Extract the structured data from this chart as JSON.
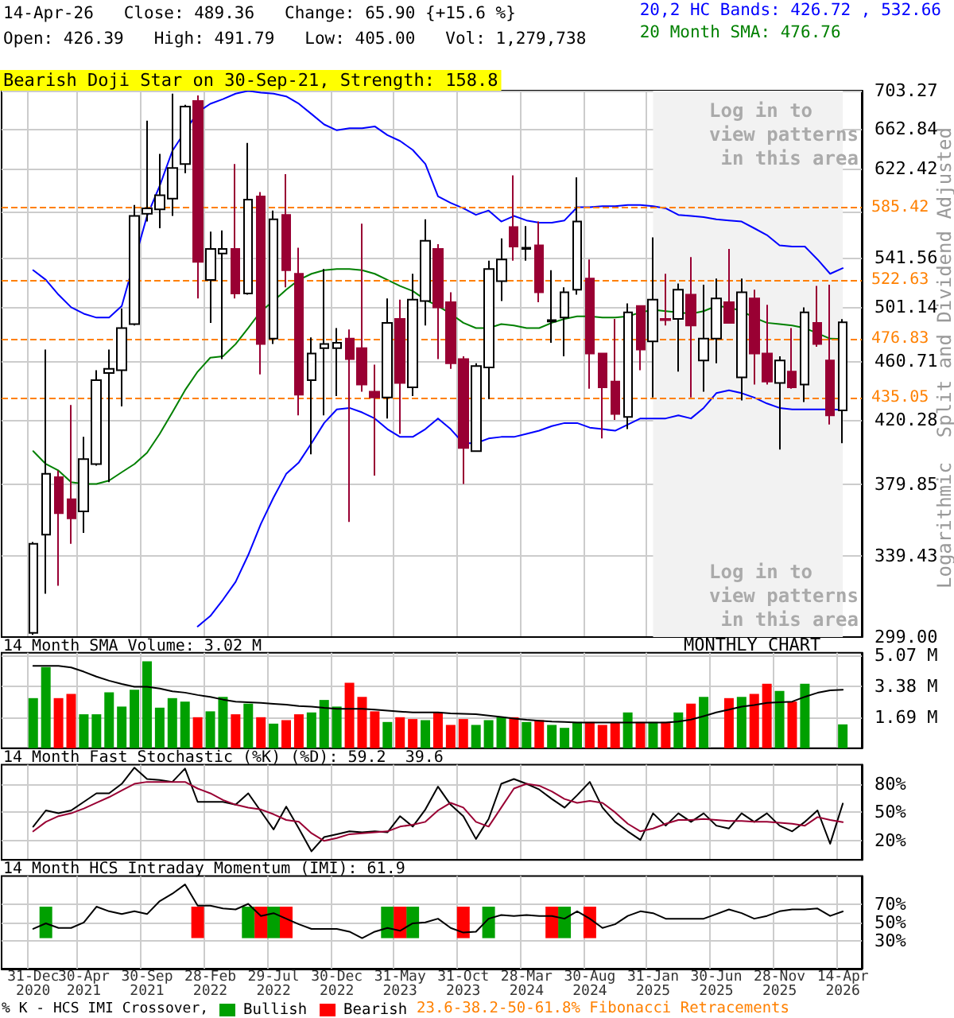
{
  "chart_data": [
    {
      "type": "candlestick",
      "title": "14-Apr-26   Close: 489.36   Change: 65.90 {+15.6 %}",
      "subtitle": "Open: 426.39   High: 491.79   Low: 405.00   Vol: 1,279,738",
      "ylabel": "Split and Dividend Adjusted",
      "annotations": [
        "Bearish Doji Star on 30-Sep-21, Strength: 158.8",
        "Log in to view patterns in this area",
        "Log in to view patterns in this area",
        "Logarithmic"
      ],
      "categories": [
        "31-Dec 2020",
        null,
        null,
        null,
        "30-Apr 2021",
        null,
        null,
        null,
        null,
        "30-Sep 2021",
        null,
        null,
        null,
        null,
        "28-Feb 2022",
        null,
        null,
        null,
        null,
        "29-Jul 2022",
        null,
        null,
        null,
        null,
        "30-Dec 2022",
        null,
        null,
        null,
        null,
        "31-May 2023",
        null,
        null,
        null,
        null,
        "31-Oct 2023",
        null,
        null,
        null,
        null,
        "28-Mar 2024",
        null,
        null,
        null,
        null,
        "30-Aug 2024",
        null,
        null,
        null,
        null,
        "31-Jan 2025",
        null,
        null,
        null,
        null,
        "30-Jun 2025",
        null,
        null,
        null,
        null,
        "28-Nov 2025",
        null,
        null,
        null,
        null,
        "14-Apr 2026"
      ],
      "ohlc": [
        [
          301,
          347,
          300,
          346
        ],
        [
          351,
          469,
          320,
          386
        ],
        [
          384,
          388,
          324,
          363
        ],
        [
          371,
          430,
          346,
          360
        ],
        [
          364,
          409,
          352,
          395
        ],
        [
          392,
          454,
          391,
          447
        ],
        [
          452,
          469,
          381,
          455
        ],
        [
          454,
          500,
          429,
          485
        ],
        [
          488,
          588,
          487,
          578
        ],
        [
          580,
          671,
          573,
          585
        ],
        [
          584,
          637,
          567,
          597
        ],
        [
          594,
          700,
          578,
          623
        ],
        [
          627,
          688,
          618,
          686
        ],
        [
          692,
          698,
          508,
          538
        ],
        [
          523,
          564,
          489,
          549
        ],
        [
          545,
          565,
          462,
          549
        ],
        [
          549,
          627,
          508,
          512
        ],
        [
          512,
          648,
          511,
          593
        ],
        [
          596,
          600,
          451,
          473
        ],
        [
          477,
          583,
          473,
          575
        ],
        [
          579,
          617,
          517,
          531
        ],
        [
          528,
          550,
          423,
          437
        ],
        [
          447,
          478,
          398,
          466
        ],
        [
          470,
          532,
          423,
          473
        ],
        [
          470,
          485,
          436,
          474
        ],
        [
          477,
          484,
          358,
          462
        ],
        [
          470,
          571,
          439,
          444
        ],
        [
          439,
          458,
          385,
          435
        ],
        [
          435,
          508,
          421,
          489
        ],
        [
          492,
          507,
          411,
          445
        ],
        [
          442,
          528,
          436,
          507
        ],
        [
          506,
          575,
          487,
          556
        ],
        [
          549,
          553,
          462,
          501
        ],
        [
          505,
          513,
          455,
          459
        ],
        [
          462,
          464,
          380,
          402
        ],
        [
          400,
          459,
          400,
          457
        ],
        [
          456,
          539,
          434,
          532
        ],
        [
          522,
          558,
          506,
          540
        ],
        [
          568,
          616,
          539,
          551
        ],
        [
          549,
          569,
          539,
          550
        ],
        [
          552,
          573,
          505,
          513
        ],
        [
          490,
          531,
          474,
          491
        ],
        [
          493,
          517,
          464,
          513
        ],
        [
          515,
          614,
          511,
          573
        ],
        [
          524,
          540,
          441,
          466
        ],
        [
          466,
          466,
          408,
          442
        ],
        [
          446,
          492,
          420,
          424
        ],
        [
          422,
          504,
          414,
          497
        ],
        [
          502,
          502,
          454,
          469
        ],
        [
          475,
          559,
          435,
          507
        ],
        [
          492,
          528,
          487,
          491
        ],
        [
          492,
          520,
          453,
          515
        ],
        [
          511,
          542,
          435,
          487
        ],
        [
          461,
          519,
          439,
          477
        ],
        [
          477,
          524,
          459,
          508
        ],
        [
          505,
          549,
          489,
          489
        ],
        [
          449,
          524,
          433,
          513
        ],
        [
          508,
          515,
          444,
          466
        ],
        [
          466,
          503,
          444,
          446
        ],
        [
          445,
          464,
          401,
          461
        ],
        [
          453,
          485,
          441,
          442
        ],
        [
          444,
          501,
          432,
          497
        ],
        [
          489,
          518,
          471,
          473
        ],
        [
          461,
          519,
          417,
          423
        ],
        [
          426.39,
          491.79,
          405,
          489.36
        ]
      ],
      "series": [
        {
          "type": "line",
          "name": "20,2 HC Bands: 426.72 , 532.66",
          "color": "#0000ff",
          "values": [
            531,
            523,
            511,
            501,
            496,
            493,
            493,
            502,
            null,
            578,
            606,
            640,
            null,
            680,
            689,
            694,
            700,
            703,
            701,
            700,
            697,
            689,
            678,
            667,
            661,
            663,
            663,
            665,
            656,
            650,
            641,
            627,
            596,
            590,
            585,
            579,
            583,
            573,
            578,
            574,
            572,
            572,
            574,
            586,
            586,
            587,
            587,
            588,
            588,
            587,
            585,
            579,
            578,
            577,
            575,
            574,
            573,
            567,
            561,
            552,
            551,
            551,
            540,
            528,
            532.66
          ]
        },
        {
          "type": "line",
          "color": "#0000ff",
          "values": [
            null,
            null,
            null,
            null,
            null,
            null,
            null,
            null,
            null,
            null,
            null,
            null,
            null,
            304,
            309,
            317,
            326,
            340,
            357,
            372,
            386,
            393,
            405,
            418,
            427,
            428,
            425,
            421,
            414,
            409,
            409,
            414,
            421,
            414,
            405,
            405,
            408,
            409,
            409,
            411,
            413,
            416,
            418,
            418,
            415,
            414,
            413,
            417,
            421,
            421,
            421,
            423,
            421,
            428,
            438,
            440,
            438,
            435,
            431,
            428,
            427,
            427,
            427,
            427,
            426.72
          ]
        },
        {
          "type": "line",
          "name": "20 Month SMA: 476.76",
          "color": "#008000",
          "values": [
            400,
            392,
            388,
            381,
            380,
            380,
            382,
            387,
            392,
            399,
            411,
            425,
            440,
            453,
            463,
            464,
            473,
            485,
            498,
            506,
            515,
            523,
            528,
            531,
            532,
            532,
            531,
            528,
            523,
            518,
            514,
            507,
            502,
            496,
            489,
            485,
            485,
            488,
            487,
            485,
            485,
            489,
            492,
            494,
            494,
            493,
            493,
            494,
            497,
            499,
            498,
            497,
            496,
            498,
            502,
            501,
            498,
            493,
            489,
            488,
            487,
            485,
            481,
            477,
            476.76
          ]
        }
      ],
      "ylim": [
        299,
        703.27
      ],
      "yticks": [
        {
          "value": 299,
          "label": "299.00"
        },
        339.43,
        379.85,
        420.28,
        460.71,
        501.14,
        541.56,
        {
          "value": 581.99,
          "label": null
        },
        622.42,
        662.84,
        703.27
      ],
      "log": true,
      "grid": true,
      "legend": "top right",
      "marker": "none",
      "tick_labels": "y",
      "ref_lines": [
        {
          "axis": "y",
          "value": 585.42,
          "label": "585.42",
          "color": "#ff8000",
          "line_style": "dashed"
        },
        {
          "axis": "y",
          "value": 522.63,
          "label": "522.63",
          "color": "#ff8000",
          "line_style": "dashed"
        },
        {
          "axis": "y",
          "value": 476.83,
          "label": "476.83",
          "color": "#ff8000",
          "line_style": "dashed"
        },
        {
          "axis": "y",
          "value": 435.05,
          "label": "435.05",
          "color": "#ff8000",
          "line_style": "dashed"
        }
      ],
      "bands": [
        {
          "axis": "x",
          "from": "31-Jan 2025",
          "to": "14-Apr 2026",
          "color": "#f2f2f2"
        }
      ]
    },
    {
      "type": "bar",
      "title": "14 Month SMA Volume: 3.02 M",
      "annotations": [
        "MONTHLY CHART"
      ],
      "categories": [
        "31-Dec 2020",
        null,
        null,
        null,
        "30-Apr 2021",
        null,
        null,
        null,
        null,
        "30-Sep 2021",
        null,
        null,
        null,
        null,
        "28-Feb 2022",
        null,
        null,
        null,
        null,
        "29-Jul 2022",
        null,
        null,
        null,
        null,
        "30-Dec 2022",
        null,
        null,
        null,
        null,
        "31-May 2023",
        null,
        null,
        null,
        null,
        "31-Oct 2023",
        null,
        null,
        null,
        null,
        "28-Mar 2024",
        null,
        null,
        null,
        null,
        "30-Aug 2024",
        null,
        null,
        null,
        null,
        "31-Jan 2025",
        null,
        null,
        null,
        null,
        "30-Jun 2025",
        null,
        null,
        null,
        null,
        "28-Nov 2025",
        null,
        null,
        null,
        null,
        "14-Apr 2026"
      ],
      "series": [
        {
          "values": [
            2.73,
            4.42,
            2.73,
            2.96,
            1.85,
            1.85,
            3.05,
            2.27,
            3.19,
            4.74,
            2.21,
            2.73,
            2.54,
            1.69,
            2.01,
            2.8,
            1.85,
            2.43,
            1.69,
            1.34,
            1.53,
            1.85,
            1.95,
            2.63,
            2.27,
            3.57,
            2.8,
            2.01,
            1.43,
            1.69,
            1.59,
            1.53,
            1.95,
            1.27,
            1.59,
            1.27,
            1.53,
            1.69,
            1.69,
            1.43,
            1.53,
            1.27,
            1.11,
            1.43,
            1.43,
            1.27,
            1.43,
            1.95,
            1.43,
            1.43,
            1.43,
            1.95,
            2.43,
            2.8,
            null,
            2.73,
            2.8,
            2.96,
            3.51,
            3.12,
            2.54,
            3.51,
            null,
            null,
            1.3
          ],
          "colors": [
            "#00a000",
            "#00a000",
            "#ff0000",
            "#ff0000",
            "#00a000",
            "#00a000",
            "#00a000",
            "#00a000",
            "#00a000",
            "#00a000",
            "#00a000",
            "#00a000",
            "#00a000",
            "#ff0000",
            "#00a000",
            "#00a000",
            "#ff0000",
            "#00a000",
            "#ff0000",
            "#00a000",
            "#ff0000",
            "#ff0000",
            "#00a000",
            "#00a000",
            "#00a000",
            "#ff0000",
            "#ff0000",
            "#ff0000",
            "#00a000",
            "#ff0000",
            "#ff0000",
            "#00a000",
            "#ff0000",
            "#ff0000",
            "#ff0000",
            "#00a000",
            "#00a000",
            "#00a000",
            "#ff0000",
            "#00a000",
            "#ff0000",
            "#00a000",
            "#00a000",
            "#00a000",
            "#ff0000",
            "#ff0000",
            "#ff0000",
            "#00a000",
            "#ff0000",
            "#00a000",
            "#ff0000",
            "#00a000",
            "#ff0000",
            "#00a000",
            "#00a000",
            "#ff0000",
            "#00a000",
            "#ff0000",
            "#ff0000",
            "#00a000",
            "#ff0000",
            "#00a000",
            "#ff0000",
            "#ff0000",
            "#00a000"
          ]
        },
        {
          "type": "line",
          "color": "#000000",
          "values": [
            4.49,
            4.49,
            4.49,
            4.4,
            4.17,
            3.9,
            3.68,
            3.5,
            3.35,
            3.35,
            3.25,
            3.1,
            3.03,
            2.9,
            2.8,
            2.65,
            2.54,
            2.5,
            2.47,
            2.42,
            2.37,
            2.3,
            2.27,
            2.2,
            2.15,
            2.15,
            2.15,
            2.1,
            2.05,
            2.0,
            1.95,
            1.95,
            1.95,
            1.9,
            1.88,
            1.85,
            1.78,
            1.7,
            1.62,
            1.55,
            1.5,
            1.45,
            1.43,
            1.4,
            1.4,
            1.4,
            1.4,
            1.4,
            1.4,
            1.4,
            1.4,
            1.45,
            1.56,
            1.75,
            1.95,
            2.1,
            2.27,
            2.35,
            2.47,
            2.5,
            2.54,
            2.8,
            3.02,
            3.15,
            3.19
          ]
        }
      ],
      "ylim": [
        0,
        5.2
      ],
      "yticks": [
        {
          "value": 1.69,
          "label": "1.69 M"
        },
        {
          "value": 3.38,
          "label": "3.38 M"
        },
        {
          "value": 5.07,
          "label": "5.07 M"
        }
      ],
      "grid": true,
      "marker": "none",
      "tick_labels": "y"
    },
    {
      "type": "line",
      "title": "14 Month Fast Stochastic (%K) (%D): 59.2  39.6",
      "categories": [
        "31-Dec 2020",
        null,
        null,
        null,
        "30-Apr 2021",
        null,
        null,
        null,
        null,
        "30-Sep 2021",
        null,
        null,
        null,
        null,
        "28-Feb 2022",
        null,
        null,
        null,
        null,
        "29-Jul 2022",
        null,
        null,
        null,
        null,
        "30-Dec 2022",
        null,
        null,
        null,
        null,
        "31-May 2023",
        null,
        null,
        null,
        null,
        "31-Oct 2023",
        null,
        null,
        null,
        null,
        "28-Mar 2024",
        null,
        null,
        null,
        null,
        "30-Aug 2024",
        null,
        null,
        null,
        null,
        "31-Jan 2025",
        null,
        null,
        null,
        null,
        "30-Jun 2025",
        null,
        null,
        null,
        null,
        "28-Nov 2025",
        null,
        null,
        null,
        null,
        "14-Apr 2026"
      ],
      "series": [
        {
          "color": "#000000",
          "values": [
            35,
            52,
            49,
            52,
            61,
            70,
            70,
            80,
            97,
            85,
            84,
            82,
            96,
            61,
            61,
            61,
            58,
            70,
            51,
            32,
            56,
            33,
            9,
            24,
            27,
            30,
            29,
            30,
            29,
            46,
            35,
            53,
            77,
            58,
            46,
            22,
            43,
            80,
            85,
            80,
            74,
            64,
            55,
            68,
            82,
            55,
            40,
            30,
            21,
            49,
            36,
            49,
            40,
            49,
            36,
            33,
            49,
            40,
            49,
            36,
            30,
            40,
            52,
            17,
            59.2
          ]
        },
        {
          "color": "#990033",
          "values": [
            30,
            40,
            46,
            49,
            54,
            60,
            66,
            73,
            80,
            82,
            82,
            82,
            82,
            75,
            70,
            63,
            58,
            55,
            53,
            48,
            42,
            40,
            28,
            20,
            23,
            27,
            28,
            29,
            30,
            35,
            37,
            40,
            52,
            60,
            55,
            40,
            35,
            55,
            75,
            80,
            78,
            72,
            64,
            60,
            62,
            60,
            50,
            38,
            30,
            33,
            38,
            42,
            42,
            43,
            42,
            41,
            41,
            40,
            40,
            39,
            38,
            36,
            45,
            42,
            39.6
          ]
        }
      ],
      "ylim": [
        0,
        100
      ],
      "yticks": [
        {
          "value": 20,
          "label": "20%"
        },
        {
          "value": 50,
          "label": "50%"
        },
        {
          "value": 80,
          "label": "80%"
        }
      ],
      "grid": true,
      "marker": "none",
      "tick_labels": "y"
    },
    {
      "type": "line",
      "title": "14 Month HCS Intraday Momentum (IMI): 61.9",
      "legend_title": "% K - HCS IMI Crossover,",
      "annotations": [
        "23.6-38.2-50-61.8% Fibonacci Retracements"
      ],
      "categories": [
        "31-Dec 2020",
        null,
        null,
        null,
        "30-Apr 2021",
        null,
        null,
        null,
        null,
        "30-Sep 2021",
        null,
        null,
        null,
        null,
        "28-Feb 2022",
        null,
        null,
        null,
        null,
        "29-Jul 2022",
        null,
        null,
        null,
        null,
        "30-Dec 2022",
        null,
        null,
        null,
        null,
        "31-May 2023",
        null,
        null,
        null,
        null,
        "31-Oct 2023",
        null,
        null,
        null,
        null,
        "28-Mar 2024",
        null,
        null,
        null,
        null,
        "30-Aug 2024",
        null,
        null,
        null,
        null,
        "31-Jan 2025",
        null,
        null,
        null,
        null,
        "30-Jun 2025",
        null,
        null,
        null,
        null,
        "28-Nov 2025",
        null,
        null,
        null,
        null,
        "14-Apr 2026"
      ],
      "series": [
        {
          "type": "bar",
          "name": "Bullish",
          "color": "#00a000",
          "values": [
            null,
            34,
            null,
            null,
            null,
            null,
            null,
            null,
            null,
            null,
            null,
            null,
            null,
            null,
            null,
            null,
            null,
            34,
            null,
            34,
            null,
            null,
            null,
            null,
            null,
            null,
            null,
            null,
            34,
            null,
            34,
            null,
            null,
            null,
            null,
            null,
            34,
            null,
            null,
            null,
            null,
            null,
            34,
            null,
            null,
            null,
            null,
            null,
            null,
            null,
            null,
            null,
            null,
            null,
            null,
            null,
            null,
            null,
            null,
            null,
            null,
            null,
            null,
            null,
            null
          ],
          "base": [
            null,
            33,
            null,
            null,
            null,
            null,
            null,
            null,
            null,
            null,
            null,
            null,
            null,
            null,
            null,
            null,
            null,
            33,
            null,
            33,
            null,
            null,
            null,
            null,
            null,
            null,
            null,
            null,
            33,
            null,
            33,
            null,
            null,
            null,
            null,
            null,
            33,
            null,
            null,
            null,
            null,
            null,
            33,
            null,
            null,
            null,
            null,
            null,
            null,
            null,
            null,
            null,
            null,
            null,
            null,
            null,
            null,
            null,
            null,
            null,
            null,
            null,
            null,
            null,
            null
          ]
        },
        {
          "type": "bar",
          "name": "Bearish",
          "color": "#ff0000",
          "values": [
            null,
            null,
            null,
            null,
            null,
            null,
            null,
            null,
            null,
            null,
            null,
            null,
            null,
            34,
            null,
            null,
            null,
            null,
            34,
            null,
            34,
            null,
            null,
            null,
            null,
            null,
            null,
            null,
            null,
            34,
            null,
            null,
            null,
            null,
            34,
            null,
            null,
            null,
            null,
            null,
            null,
            34,
            null,
            null,
            34,
            null,
            null,
            null,
            null,
            null,
            null,
            null,
            null,
            null,
            null,
            null,
            null,
            null,
            null,
            null,
            null,
            null,
            null,
            null,
            null
          ],
          "base": [
            null,
            null,
            null,
            null,
            null,
            null,
            null,
            null,
            null,
            null,
            null,
            null,
            null,
            33,
            null,
            null,
            null,
            null,
            33,
            null,
            33,
            null,
            null,
            null,
            null,
            null,
            null,
            null,
            null,
            33,
            null,
            null,
            null,
            null,
            33,
            null,
            null,
            null,
            null,
            null,
            null,
            33,
            null,
            null,
            33,
            null,
            null,
            null,
            null,
            null,
            null,
            null,
            null,
            null,
            null,
            null,
            null,
            null,
            null,
            null,
            null,
            null,
            null,
            null,
            null
          ]
        },
        {
          "type": "line",
          "color": "#000000",
          "values": [
            43,
            49,
            44,
            44,
            50,
            67,
            62,
            59,
            62,
            59,
            73,
            81,
            91,
            68,
            68,
            65,
            64,
            70,
            57,
            60,
            54,
            48,
            43,
            43,
            43,
            40,
            33,
            40,
            44,
            41,
            49,
            50,
            54,
            44,
            39,
            40,
            54,
            58,
            57,
            58,
            57,
            57,
            54,
            62,
            54,
            44,
            48,
            57,
            62,
            60,
            54,
            54,
            54,
            54,
            59,
            64,
            60,
            54,
            57,
            62,
            64,
            64,
            65,
            57,
            61.9
          ]
        }
      ],
      "ylim": [
        0,
        100
      ],
      "yticks": [
        {
          "value": 30,
          "label": "30%"
        },
        {
          "value": 50,
          "label": "50%"
        },
        {
          "value": 70,
          "label": "70%"
        }
      ],
      "grid": true,
      "legend": "bottom",
      "marker": "none"
    }
  ]
}
